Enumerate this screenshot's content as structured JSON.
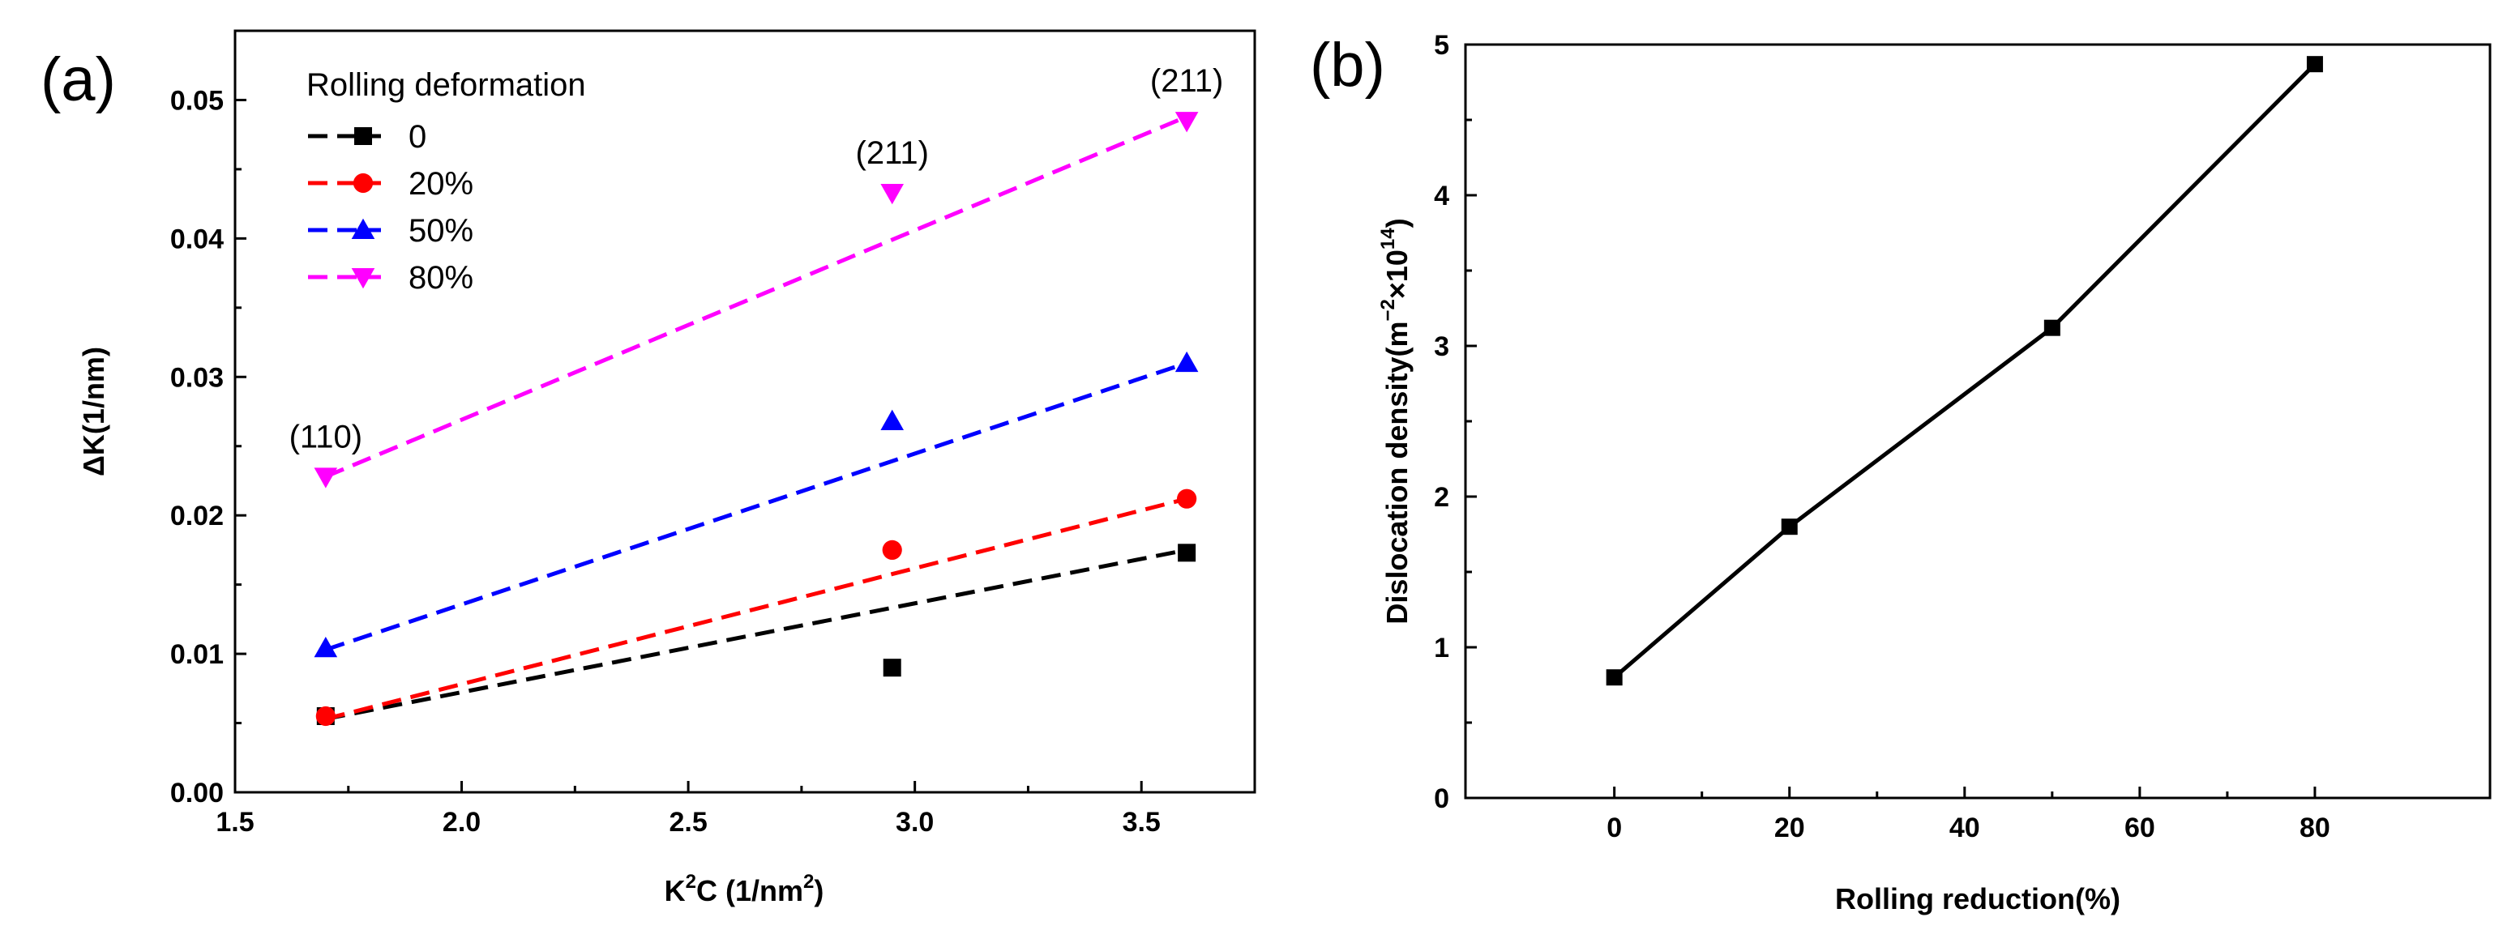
{
  "chart_data": [
    {
      "panel_label": "(a)",
      "type": "scatter",
      "xlabel_main": "K",
      "xlabel_sup": "2",
      "xlabel_mid": "C (1/nm",
      "xlabel_sup2": "2",
      "xlabel_end": ")",
      "ylabel": "ΔK(1/nm)",
      "xlim": [
        1.5,
        3.75
      ],
      "ylim": [
        0.0,
        0.055
      ],
      "x_ticks": [
        1.5,
        2.0,
        2.5,
        3.0,
        3.5
      ],
      "x_tick_labels": [
        "1.5",
        "2.0",
        "2.5",
        "3.0",
        "3.5"
      ],
      "y_ticks": [
        0.0,
        0.01,
        0.02,
        0.03,
        0.04,
        0.05
      ],
      "y_tick_labels": [
        "0.00",
        "0.01",
        "0.02",
        "0.03",
        "0.04",
        "0.05"
      ],
      "legend_title": "Rolling deformation",
      "legend_position": "top-left",
      "series": [
        {
          "name": "0",
          "color": "#000000",
          "marker": "square",
          "x": [
            1.7,
            2.95,
            3.6
          ],
          "y": [
            0.0055,
            0.009,
            0.0173
          ],
          "fit": [
            [
              1.7,
              0.0053
            ],
            [
              3.6,
              0.0175
            ]
          ]
        },
        {
          "name": "20%",
          "color": "#ff0000",
          "marker": "circle",
          "x": [
            1.7,
            2.95,
            3.6
          ],
          "y": [
            0.0055,
            0.0175,
            0.0212
          ],
          "fit": [
            [
              1.7,
              0.0053
            ],
            [
              3.6,
              0.0212
            ]
          ]
        },
        {
          "name": "50%",
          "color": "#0000ff",
          "marker": "triangle-up",
          "x": [
            1.7,
            2.95,
            3.6
          ],
          "y": [
            0.0104,
            0.0268,
            0.031
          ],
          "fit": [
            [
              1.7,
              0.0103
            ],
            [
              3.6,
              0.031
            ]
          ]
        },
        {
          "name": "80%",
          "color": "#ff00ff",
          "marker": "triangle-down",
          "x": [
            1.7,
            2.95,
            3.6
          ],
          "y": [
            0.0228,
            0.0433,
            0.0485
          ],
          "fit": [
            [
              1.7,
              0.0228
            ],
            [
              3.6,
              0.0488
            ]
          ]
        }
      ],
      "annotations": [
        {
          "text": "(110)",
          "x": 1.7,
          "y": 0.0228
        },
        {
          "text": "(211)",
          "x": 2.95,
          "y": 0.0433
        },
        {
          "text": "(211)",
          "x": 3.6,
          "y": 0.0485
        }
      ]
    },
    {
      "panel_label": "(b)",
      "type": "line",
      "xlabel": "Rolling reduction(%)",
      "ylabel_main": "Dislocation density(m",
      "ylabel_sup1": "−2",
      "ylabel_mid": "×10",
      "ylabel_sup2": "14",
      "ylabel_end": ")",
      "xlim": [
        -17,
        100
      ],
      "ylim": [
        0,
        5
      ],
      "x_ticks": [
        0,
        20,
        40,
        60,
        80
      ],
      "x_tick_labels": [
        "0",
        "20",
        "40",
        "60",
        "80"
      ],
      "y_ticks": [
        0,
        1,
        2,
        3,
        4,
        5
      ],
      "y_tick_labels": [
        "0",
        "1",
        "2",
        "3",
        "4",
        "5"
      ],
      "series": [
        {
          "name": "Dislocation density",
          "color": "#000000",
          "marker": "square",
          "x": [
            0,
            20,
            50,
            80
          ],
          "y": [
            0.8,
            1.8,
            3.12,
            4.87
          ]
        }
      ]
    }
  ]
}
